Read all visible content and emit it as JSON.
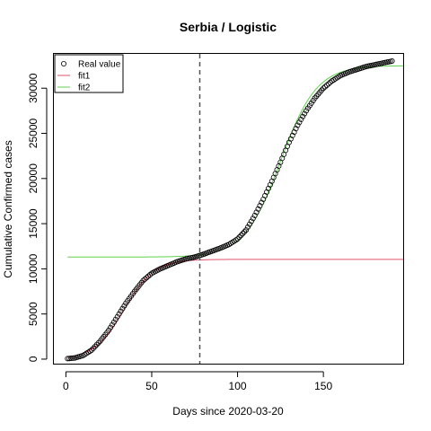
{
  "chart_data": {
    "type": "scatter",
    "title": "Serbia / Logistic",
    "xlabel": "Days since 2020-03-20",
    "ylabel": "Cumulative Confirmed cases",
    "xlim": [
      -7,
      197
    ],
    "ylim": [
      -600,
      33800
    ],
    "xticks": [
      0,
      50,
      100,
      150
    ],
    "yticks": [
      0,
      5000,
      10000,
      15000,
      20000,
      25000,
      30000
    ],
    "grid": false,
    "legend_position": "top-left",
    "vline": {
      "x": 78,
      "style": "dashed"
    },
    "observed_keypoints": [
      [
        1,
        60
      ],
      [
        5,
        120
      ],
      [
        10,
        400
      ],
      [
        15,
        1000
      ],
      [
        20,
        2000
      ],
      [
        25,
        3200
      ],
      [
        30,
        4700
      ],
      [
        35,
        6200
      ],
      [
        40,
        7500
      ],
      [
        45,
        8700
      ],
      [
        50,
        9500
      ],
      [
        55,
        10000
      ],
      [
        60,
        10400
      ],
      [
        65,
        10800
      ],
      [
        70,
        11100
      ],
      [
        75,
        11300
      ],
      [
        80,
        11600
      ],
      [
        85,
        11950
      ],
      [
        90,
        12300
      ],
      [
        95,
        12700
      ],
      [
        100,
        13300
      ],
      [
        105,
        14300
      ],
      [
        110,
        15900
      ],
      [
        115,
        17700
      ],
      [
        120,
        19700
      ],
      [
        125,
        21800
      ],
      [
        130,
        24000
      ],
      [
        135,
        25900
      ],
      [
        140,
        27500
      ],
      [
        145,
        28900
      ],
      [
        150,
        30000
      ],
      [
        155,
        30800
      ],
      [
        160,
        31400
      ],
      [
        165,
        31800
      ],
      [
        170,
        32100
      ],
      [
        175,
        32400
      ],
      [
        180,
        32600
      ],
      [
        185,
        32800
      ],
      [
        190,
        33000
      ]
    ],
    "observed_range": [
      1,
      190
    ],
    "series": [
      {
        "name": "Real value",
        "style": "points",
        "color": "#000000"
      },
      {
        "name": "fit1",
        "style": "line",
        "color": "#df536b",
        "model": {
          "type": "logistic",
          "L": 11050,
          "k": 0.115,
          "t0": 34
        },
        "x_range": [
          1,
          197
        ]
      },
      {
        "name": "fit2",
        "style": "line",
        "color": "#61d04f",
        "model": {
          "type": "offset-logistic",
          "base": 11300,
          "L": 21200,
          "k": 0.095,
          "t0": 125
        },
        "x_range": [
          1,
          197
        ]
      }
    ]
  }
}
